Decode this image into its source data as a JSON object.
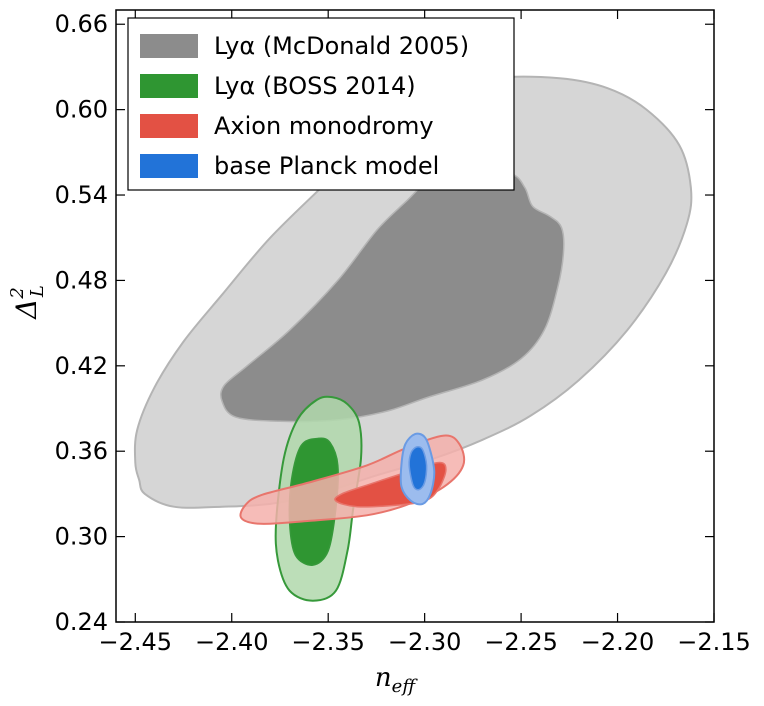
{
  "chart_data": {
    "type": "contour",
    "xlabel": "n_eff",
    "ylabel": "Δ²_L",
    "xlim": [
      -2.46,
      -2.15
    ],
    "ylim": [
      0.24,
      0.67
    ],
    "xticks": [
      -2.45,
      -2.4,
      -2.35,
      -2.3,
      -2.25,
      -2.2,
      -2.15
    ],
    "xtick_labels": [
      "−2.45",
      "−2.40",
      "−2.35",
      "−2.30",
      "−2.25",
      "−2.20",
      "−2.15"
    ],
    "yticks": [
      0.24,
      0.3,
      0.36,
      0.42,
      0.48,
      0.54,
      0.6,
      0.66
    ],
    "ytick_labels": [
      "0.24",
      "0.30",
      "0.36",
      "0.42",
      "0.48",
      "0.54",
      "0.60",
      "0.66"
    ],
    "legend_position": "top-left",
    "series": [
      {
        "name": "Lyα (McDonald 2005)",
        "color": "#8c8c8c",
        "outer_color": "#d6d6d6",
        "edge_color": "#b4b4b4",
        "outer_contour": [
          [
            -2.45,
            0.352
          ],
          [
            -2.448,
            0.34
          ],
          [
            -2.445,
            0.33
          ],
          [
            -2.43,
            0.321
          ],
          [
            -2.405,
            0.321
          ],
          [
            -2.38,
            0.323
          ],
          [
            -2.355,
            0.33
          ],
          [
            -2.325,
            0.343
          ],
          [
            -2.295,
            0.355
          ],
          [
            -2.27,
            0.368
          ],
          [
            -2.245,
            0.385
          ],
          [
            -2.22,
            0.41
          ],
          [
            -2.195,
            0.445
          ],
          [
            -2.175,
            0.485
          ],
          [
            -2.164,
            0.52
          ],
          [
            -2.162,
            0.545
          ],
          [
            -2.168,
            0.575
          ],
          [
            -2.185,
            0.6
          ],
          [
            -2.205,
            0.615
          ],
          [
            -2.23,
            0.622
          ],
          [
            -2.265,
            0.622
          ],
          [
            -2.295,
            0.612
          ],
          [
            -2.315,
            0.596
          ],
          [
            -2.33,
            0.578
          ],
          [
            -2.35,
            0.55
          ],
          [
            -2.38,
            0.51
          ],
          [
            -2.405,
            0.47
          ],
          [
            -2.425,
            0.437
          ],
          [
            -2.44,
            0.405
          ],
          [
            -2.449,
            0.375
          ]
        ],
        "inner_contour": [
          [
            -2.405,
            0.395
          ],
          [
            -2.398,
            0.384
          ],
          [
            -2.375,
            0.381
          ],
          [
            -2.345,
            0.382
          ],
          [
            -2.32,
            0.388
          ],
          [
            -2.298,
            0.398
          ],
          [
            -2.27,
            0.41
          ],
          [
            -2.25,
            0.425
          ],
          [
            -2.238,
            0.445
          ],
          [
            -2.231,
            0.475
          ],
          [
            -2.228,
            0.5
          ],
          [
            -2.229,
            0.517
          ],
          [
            -2.235,
            0.525
          ],
          [
            -2.244,
            0.532
          ],
          [
            -2.248,
            0.545
          ],
          [
            -2.255,
            0.555
          ],
          [
            -2.275,
            0.56
          ],
          [
            -2.295,
            0.553
          ],
          [
            -2.31,
            0.535
          ],
          [
            -2.325,
            0.515
          ],
          [
            -2.345,
            0.48
          ],
          [
            -2.37,
            0.445
          ],
          [
            -2.392,
            0.42
          ],
          [
            -2.404,
            0.406
          ]
        ]
      },
      {
        "name": "Lyα (BOSS 2014)",
        "color": "#2f9632",
        "outer_color": "#b0d8ab",
        "edge_color": "#36993a",
        "outer_contour": [
          [
            -2.348,
            0.398
          ],
          [
            -2.356,
            0.396
          ],
          [
            -2.366,
            0.382
          ],
          [
            -2.373,
            0.355
          ],
          [
            -2.377,
            0.31
          ],
          [
            -2.376,
            0.283
          ],
          [
            -2.37,
            0.262
          ],
          [
            -2.358,
            0.255
          ],
          [
            -2.346,
            0.262
          ],
          [
            -2.34,
            0.29
          ],
          [
            -2.337,
            0.32
          ],
          [
            -2.333,
            0.355
          ],
          [
            -2.334,
            0.38
          ],
          [
            -2.34,
            0.393
          ]
        ],
        "inner_contour": [
          [
            -2.355,
            0.369
          ],
          [
            -2.364,
            0.364
          ],
          [
            -2.369,
            0.34
          ],
          [
            -2.37,
            0.31
          ],
          [
            -2.367,
            0.287
          ],
          [
            -2.358,
            0.28
          ],
          [
            -2.35,
            0.29
          ],
          [
            -2.346,
            0.32
          ],
          [
            -2.345,
            0.35
          ],
          [
            -2.349,
            0.366
          ]
        ]
      },
      {
        "name": "Axion monodromy",
        "color": "#e35144",
        "outer_color": "#f4b0ab",
        "edge_color": "#e8756c",
        "outer_contour": [
          [
            -2.395,
            0.313
          ],
          [
            -2.393,
            0.322
          ],
          [
            -2.385,
            0.329
          ],
          [
            -2.36,
            0.338
          ],
          [
            -2.33,
            0.35
          ],
          [
            -2.31,
            0.362
          ],
          [
            -2.29,
            0.371
          ],
          [
            -2.282,
            0.365
          ],
          [
            -2.28,
            0.35
          ],
          [
            -2.29,
            0.335
          ],
          [
            -2.31,
            0.322
          ],
          [
            -2.33,
            0.315
          ],
          [
            -2.36,
            0.311
          ],
          [
            -2.385,
            0.309
          ]
        ],
        "inner_contour": [
          [
            -2.346,
            0.325
          ],
          [
            -2.343,
            0.33
          ],
          [
            -2.328,
            0.337
          ],
          [
            -2.31,
            0.345
          ],
          [
            -2.293,
            0.352
          ],
          [
            -2.289,
            0.347
          ],
          [
            -2.293,
            0.333
          ],
          [
            -2.3,
            0.325
          ],
          [
            -2.315,
            0.322
          ],
          [
            -2.335,
            0.321
          ]
        ]
      },
      {
        "name": "base Planck model",
        "color": "#2273d8",
        "outer_color": "#9cbcee",
        "edge_color": "#6a9be4",
        "outer_contour": [
          [
            -2.312,
            0.351
          ],
          [
            -2.31,
            0.365
          ],
          [
            -2.305,
            0.372
          ],
          [
            -2.3,
            0.37
          ],
          [
            -2.297,
            0.36
          ],
          [
            -2.295,
            0.345
          ],
          [
            -2.297,
            0.33
          ],
          [
            -2.301,
            0.323
          ],
          [
            -2.307,
            0.325
          ],
          [
            -2.312,
            0.335
          ]
        ],
        "inner_contour": [
          [
            -2.308,
            0.35
          ],
          [
            -2.307,
            0.359
          ],
          [
            -2.304,
            0.363
          ],
          [
            -2.301,
            0.361
          ],
          [
            -2.299,
            0.35
          ],
          [
            -2.3,
            0.338
          ],
          [
            -2.303,
            0.333
          ],
          [
            -2.306,
            0.336
          ]
        ]
      }
    ]
  }
}
